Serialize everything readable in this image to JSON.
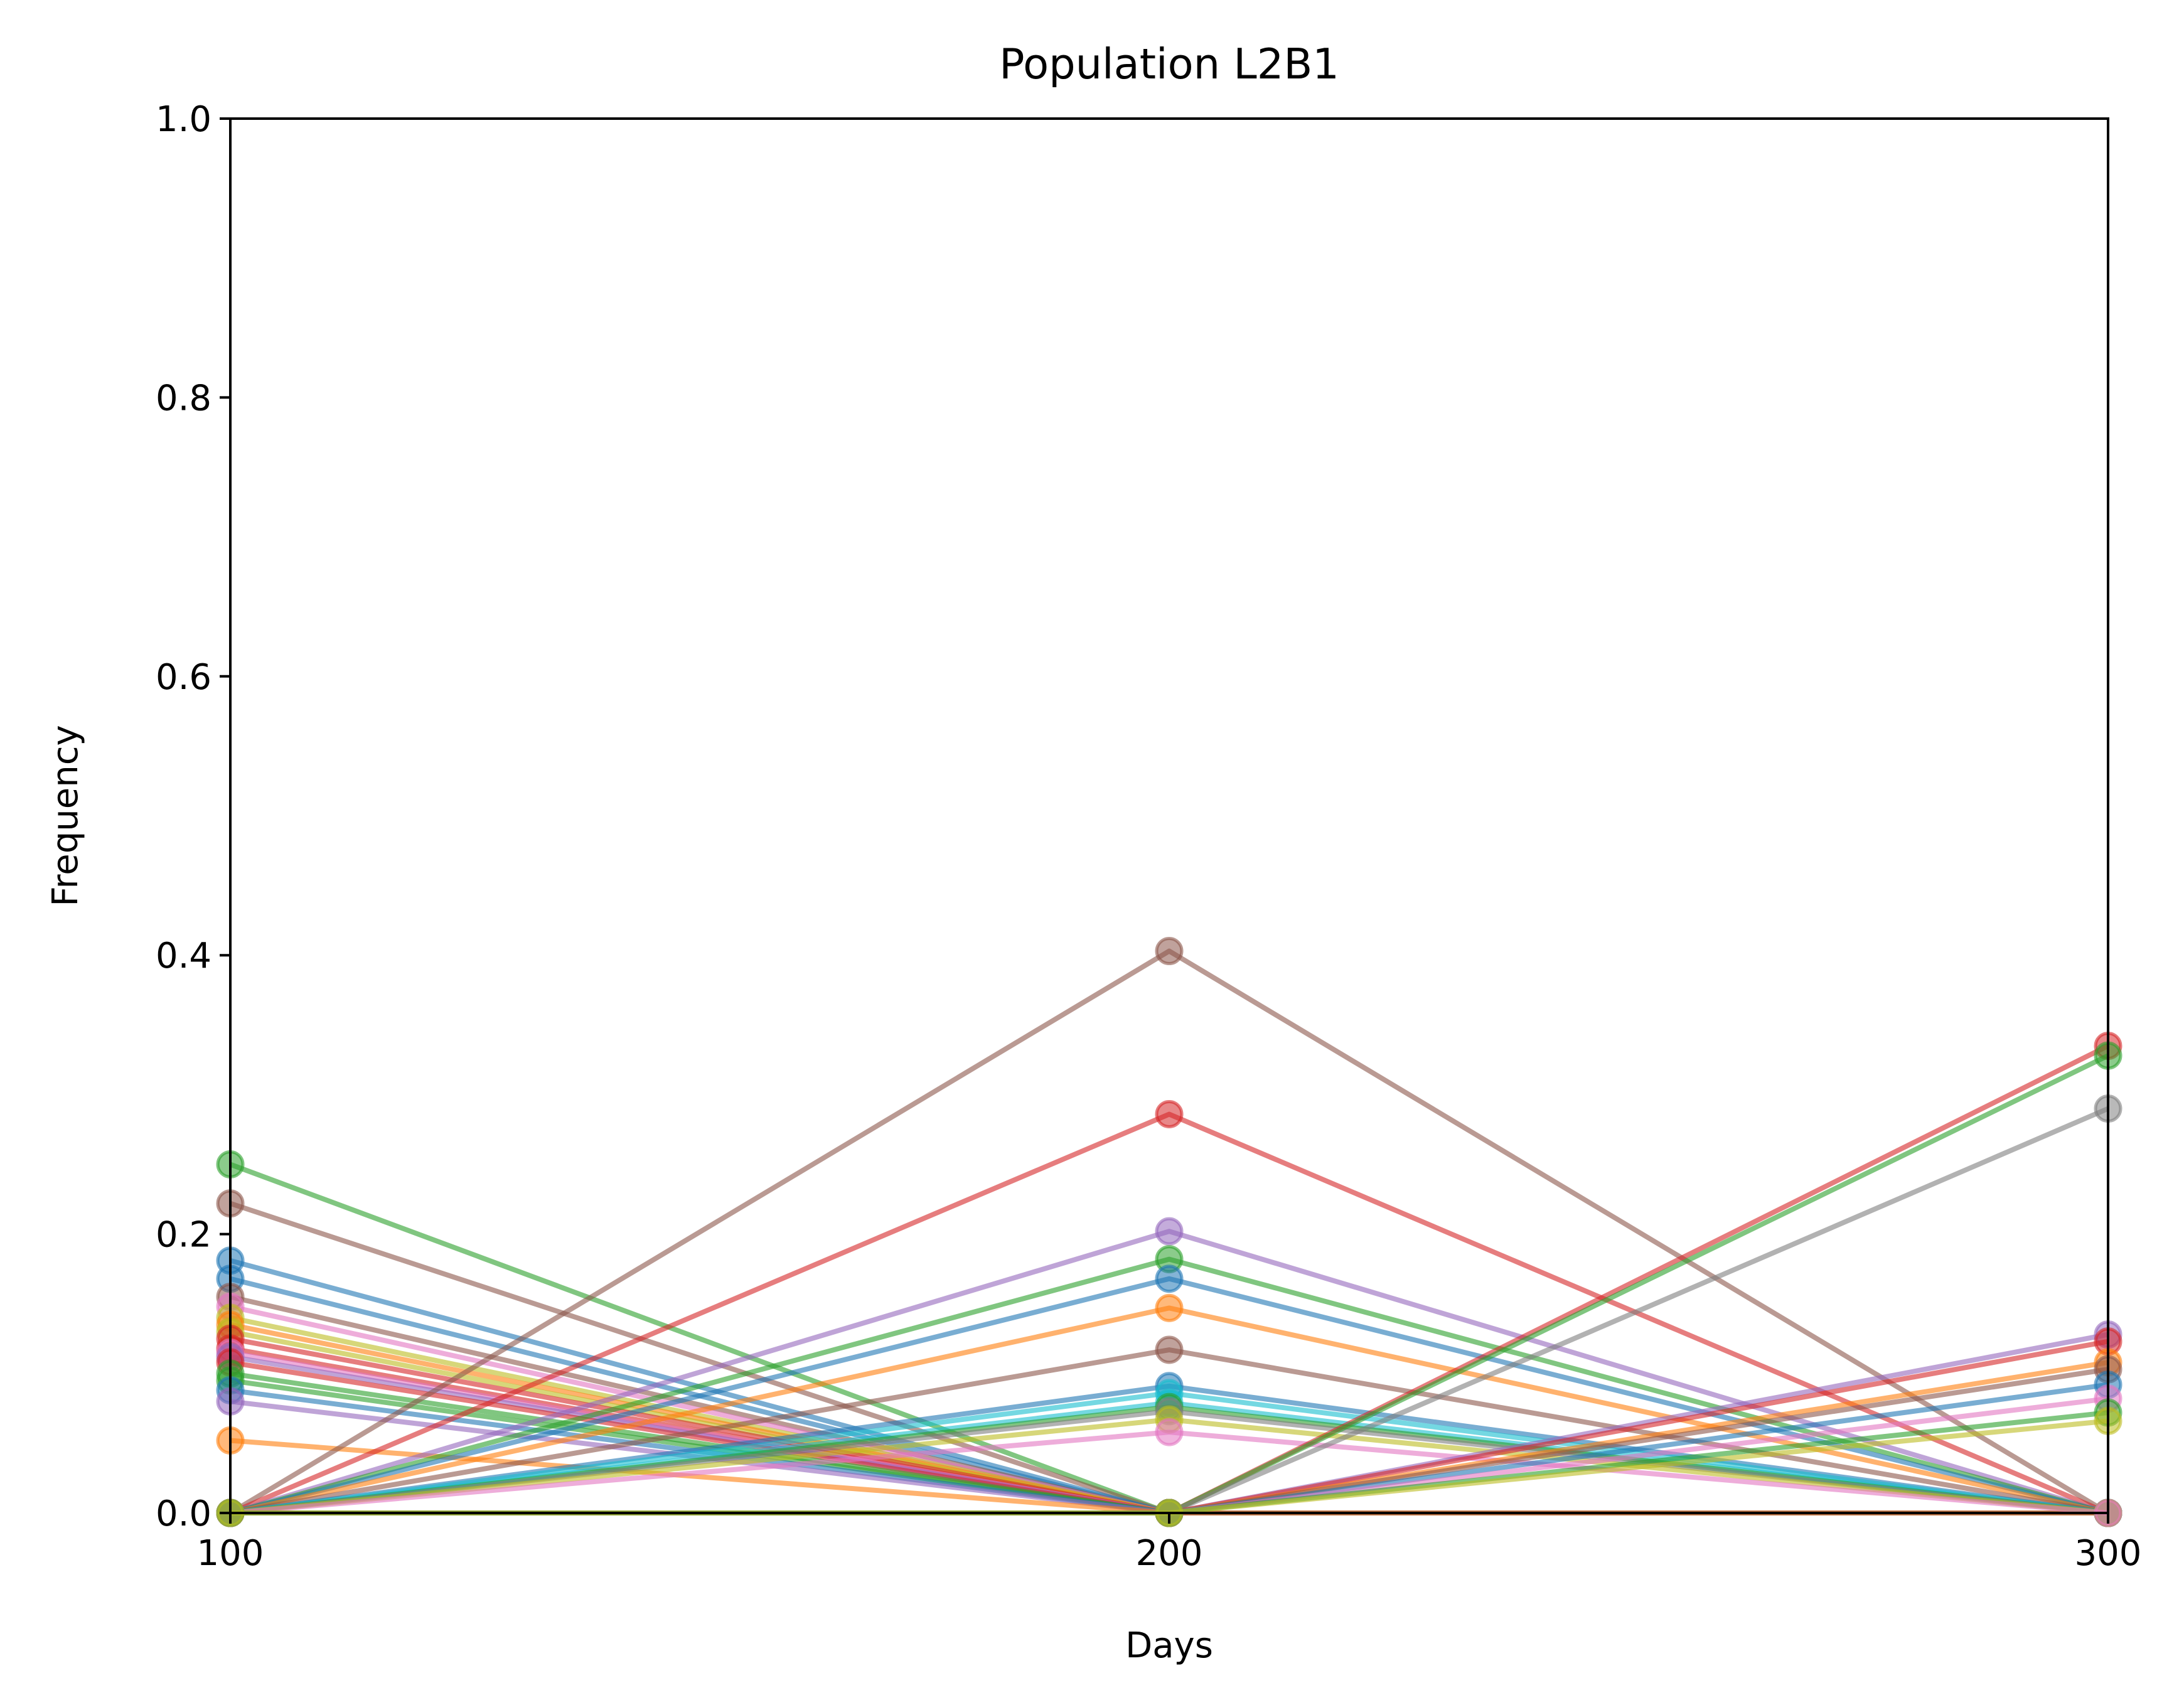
{
  "chart_data": {
    "type": "line",
    "title": "Population L2B1",
    "xlabel": "Days",
    "ylabel": "Frequency",
    "x": [
      100,
      200,
      300
    ],
    "xlim": [
      100,
      300
    ],
    "ylim": [
      0,
      1
    ],
    "xticks": [
      "100",
      "200",
      "300"
    ],
    "yticks": [
      "0.0",
      "0.2",
      "0.4",
      "0.6",
      "0.8",
      "1.0"
    ],
    "grid": false,
    "legend": "none",
    "series": [
      {
        "color": "#2ca02c",
        "values": [
          0.25,
          0,
          0
        ]
      },
      {
        "color": "#8c564b",
        "values": [
          0.222,
          0,
          0
        ]
      },
      {
        "color": "#1f77b4",
        "values": [
          0.181,
          0,
          0
        ]
      },
      {
        "color": "#1f77b4",
        "values": [
          0.168,
          0,
          0
        ]
      },
      {
        "color": "#8c564b",
        "values": [
          0.155,
          0,
          0
        ]
      },
      {
        "color": "#e377c2",
        "values": [
          0.148,
          0,
          0
        ]
      },
      {
        "color": "#bcbd22",
        "values": [
          0.14,
          0,
          0
        ]
      },
      {
        "color": "#ff7f0e",
        "values": [
          0.135,
          0,
          0
        ]
      },
      {
        "color": "#bcbd22",
        "values": [
          0.13,
          0,
          0
        ]
      },
      {
        "color": "#d62728",
        "values": [
          0.125,
          0,
          0
        ]
      },
      {
        "color": "#d62728",
        "values": [
          0.118,
          0,
          0
        ]
      },
      {
        "color": "#e377c2",
        "values": [
          0.115,
          0,
          0
        ]
      },
      {
        "color": "#9467bd",
        "values": [
          0.112,
          0,
          0
        ]
      },
      {
        "color": "#d62728",
        "values": [
          0.108,
          0,
          0
        ]
      },
      {
        "color": "#2ca02c",
        "values": [
          0.1,
          0,
          0
        ]
      },
      {
        "color": "#2ca02c",
        "values": [
          0.095,
          0,
          0
        ]
      },
      {
        "color": "#1f77b4",
        "values": [
          0.088,
          0,
          0
        ]
      },
      {
        "color": "#9467bd",
        "values": [
          0.08,
          0,
          0
        ]
      },
      {
        "color": "#ff7f0e",
        "values": [
          0.052,
          0,
          0
        ]
      },
      {
        "color": "#8c564b",
        "values": [
          0,
          0.403,
          0
        ]
      },
      {
        "color": "#d62728",
        "values": [
          0,
          0.286,
          0
        ]
      },
      {
        "color": "#9467bd",
        "values": [
          0,
          0.202,
          0
        ]
      },
      {
        "color": "#2ca02c",
        "values": [
          0,
          0.182,
          0
        ]
      },
      {
        "color": "#1f77b4",
        "values": [
          0,
          0.168,
          0
        ]
      },
      {
        "color": "#ff7f0e",
        "values": [
          0,
          0.147,
          0
        ]
      },
      {
        "color": "#8c564b",
        "values": [
          0,
          0.117,
          0
        ]
      },
      {
        "color": "#1f77b4",
        "values": [
          0,
          0.091,
          0
        ]
      },
      {
        "color": "#17becf",
        "values": [
          0,
          0.086,
          0
        ]
      },
      {
        "color": "#17becf",
        "values": [
          0,
          0.079,
          0
        ]
      },
      {
        "color": "#2ca02c",
        "values": [
          0,
          0.076,
          0
        ]
      },
      {
        "color": "#7f7f7f",
        "values": [
          0,
          0.073,
          0
        ]
      },
      {
        "color": "#bcbd22",
        "values": [
          0,
          0.067,
          0
        ]
      },
      {
        "color": "#e377c2",
        "values": [
          0,
          0.058,
          0
        ]
      },
      {
        "color": "#d62728",
        "values": [
          0,
          0,
          0.335
        ]
      },
      {
        "color": "#2ca02c",
        "values": [
          0,
          0,
          0.328
        ]
      },
      {
        "color": "#7f7f7f",
        "values": [
          0,
          0,
          0.29
        ]
      },
      {
        "color": "#9467bd",
        "values": [
          0,
          0,
          0.128
        ]
      },
      {
        "color": "#d62728",
        "values": [
          0,
          0,
          0.123
        ]
      },
      {
        "color": "#ff7f0e",
        "values": [
          0,
          0,
          0.108
        ]
      },
      {
        "color": "#8c564b",
        "values": [
          0,
          0,
          0.103
        ]
      },
      {
        "color": "#1f77b4",
        "values": [
          0,
          0,
          0.092
        ]
      },
      {
        "color": "#e377c2",
        "values": [
          0,
          0,
          0.082
        ]
      },
      {
        "color": "#2ca02c",
        "values": [
          0,
          0,
          0.072
        ]
      },
      {
        "color": "#bcbd22",
        "values": [
          0,
          0,
          0.066
        ]
      }
    ]
  }
}
